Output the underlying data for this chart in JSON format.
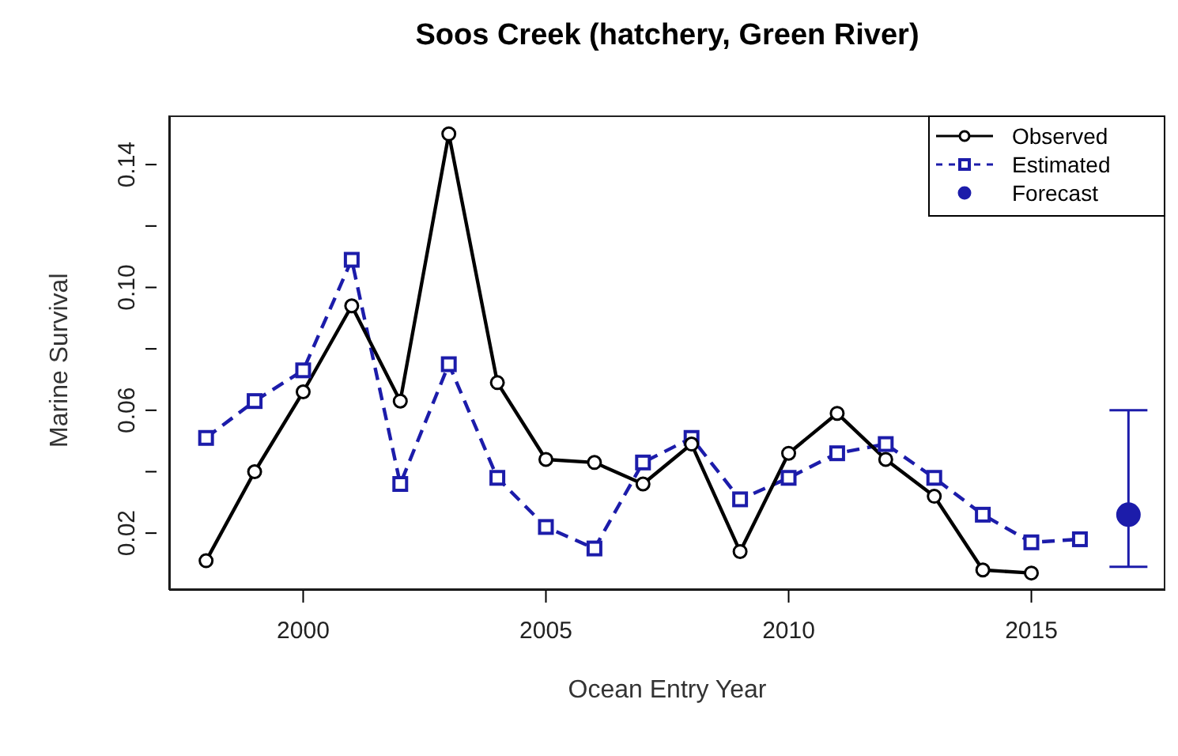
{
  "chart_data": {
    "type": "line",
    "title": "Soos Creek (hatchery, Green River)",
    "xlabel": "Ocean Entry Year",
    "ylabel": "Marine Survival",
    "xlim": [
      1997.24,
      2017.76
    ],
    "xticks": [
      2000,
      2005,
      2010,
      2015
    ],
    "ylim": [
      0.0015,
      0.156
    ],
    "yticks": [
      0.02,
      {
        "value": 0.04,
        "label": null
      },
      0.06,
      {
        "value": 0.08,
        "label": null
      },
      {
        "value": 0.1,
        "label": "0.10"
      },
      {
        "value": 0.12,
        "label": null
      },
      0.14
    ],
    "legend": "top right",
    "grid": false,
    "series": [
      {
        "name": "Observed",
        "color": "#000000",
        "marker": "circle",
        "line_style": "solid",
        "x": [
          1998,
          1999,
          2000,
          2001,
          2002,
          2003,
          2004,
          2005,
          2006,
          2007,
          2008,
          2009,
          2010,
          2011,
          2012,
          2013,
          2014,
          2015
        ],
        "values": [
          0.011,
          0.04,
          0.066,
          0.094,
          0.063,
          0.15,
          0.069,
          0.044,
          0.043,
          0.036,
          0.049,
          0.014,
          0.046,
          0.059,
          0.044,
          0.032,
          0.008,
          0.007
        ]
      },
      {
        "name": "Estimated",
        "color": "#1c1caa",
        "marker": "square",
        "line_style": "dashed",
        "x": [
          1998,
          1999,
          2000,
          2001,
          2002,
          2003,
          2004,
          2005,
          2006,
          2007,
          2008,
          2009,
          2010,
          2011,
          2012,
          2013,
          2014,
          2015,
          2016
        ],
        "values": [
          0.051,
          0.063,
          0.073,
          0.109,
          0.036,
          0.075,
          0.038,
          0.022,
          0.015,
          0.043,
          0.051,
          0.031,
          0.038,
          0.046,
          0.049,
          0.038,
          0.026,
          0.017,
          0.018
        ]
      },
      {
        "name": "Forecast",
        "type": "scatter",
        "color": "#1c1caa",
        "marker": "circle",
        "x": [
          2017
        ],
        "values": [
          0.026
        ],
        "errors": [
          [
            0.009,
            0.06
          ]
        ]
      }
    ]
  }
}
